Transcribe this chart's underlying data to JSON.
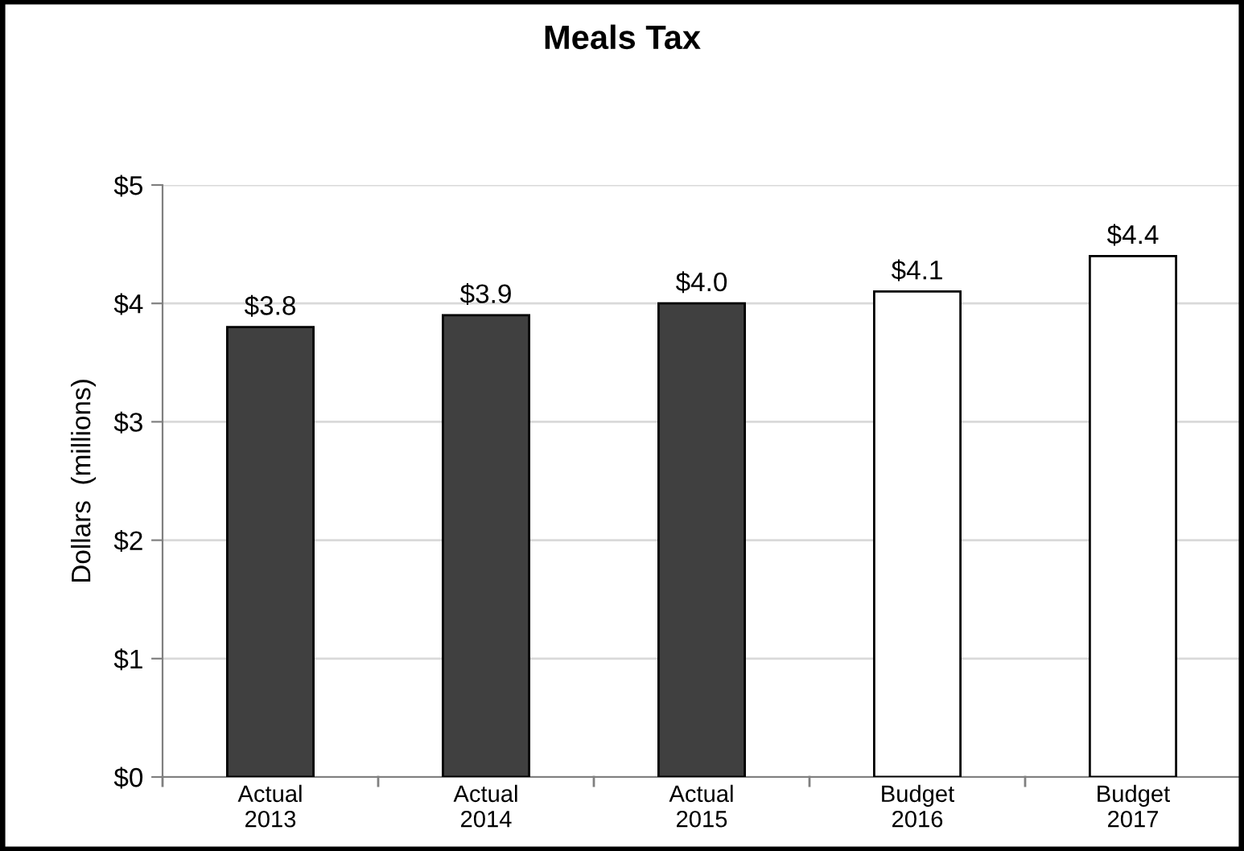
{
  "chart_data": {
    "type": "bar",
    "title": "Meals Tax",
    "ylabel": "Dollars  (millions)",
    "categories": [
      "Actual\n2013",
      "Actual\n2014",
      "Actual\n2015",
      "Budget\n2016",
      "Budget\n2017"
    ],
    "values": [
      3.8,
      3.9,
      4.0,
      4.1,
      4.4
    ],
    "colors": [
      "#404040",
      "#404040",
      "#404040",
      "#ffffff",
      "#ffffff"
    ],
    "value_labels": [
      "$3.8",
      "$3.9",
      "$4.0",
      "$4.1",
      "$4.4"
    ],
    "ylim": [
      0,
      5
    ],
    "yticks": [
      {
        "value": 0,
        "label": "$0"
      },
      {
        "value": 1,
        "label": "$1"
      },
      {
        "value": 2,
        "label": "$2"
      },
      {
        "value": 3,
        "label": "$3"
      },
      {
        "value": 4,
        "label": "$4"
      },
      {
        "value": 5,
        "label": "$5"
      }
    ],
    "grid": "y",
    "legend": false
  }
}
